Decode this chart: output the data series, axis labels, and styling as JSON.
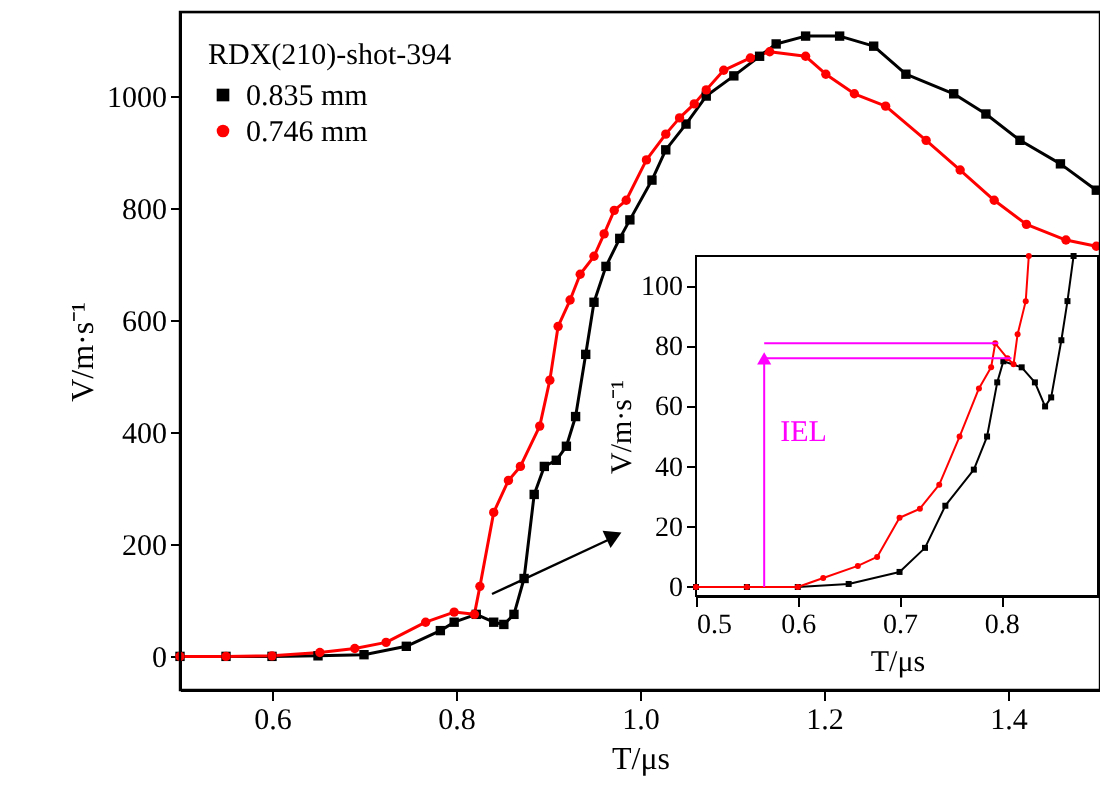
{
  "chart_data": [
    {
      "type": "line",
      "xlabel": "T/μs",
      "ylabel": "V/m·s⁻¹",
      "legend_title": "RDX(210)-shot-394",
      "legend": "top left",
      "grid": false,
      "line_style": "solid",
      "xlim": [
        0.5,
        1.5
      ],
      "xticks": [
        0.6,
        0.8,
        {
          "value": 1,
          "label": "1.0"
        },
        1.2,
        1.4
      ],
      "ylim": [
        -60,
        1150
      ],
      "yticks": [
        0,
        200,
        400,
        600,
        800,
        1000
      ],
      "series": [
        {
          "name": "0.835 mm",
          "color": "#000000",
          "marker": "square",
          "x": [
            0.5,
            0.55,
            0.6,
            0.65,
            0.7,
            0.746,
            0.783,
            0.798,
            0.822,
            0.841,
            0.852,
            0.863,
            0.874,
            0.885,
            0.896,
            0.909,
            0.92,
            0.93,
            0.941,
            0.95,
            0.963,
            0.978,
            0.989,
            1.013,
            1.028,
            1.05,
            1.072,
            1.102,
            1.13,
            1.148,
            1.18,
            1.217,
            1.254,
            1.289,
            1.341,
            1.376,
            1.413,
            1.457,
            1.496
          ],
          "values": [
            0,
            0,
            0,
            1,
            3,
            18,
            46,
            61,
            75,
            61,
            57,
            75,
            139,
            289,
            339,
            350,
            375,
            428,
            539,
            632,
            696,
            746,
            779,
            850,
            904,
            950,
            1000,
            1036,
            1071,
            1093,
            1107,
            1107,
            1089,
            1039,
            1004,
            968,
            921,
            879,
            832
          ]
        },
        {
          "name": "0.746 mm",
          "color": "#ff0000",
          "marker": "circle",
          "x": [
            0.5,
            0.55,
            0.6,
            0.652,
            0.69,
            0.724,
            0.767,
            0.798,
            0.82,
            0.826,
            0.841,
            0.857,
            0.87,
            0.891,
            0.902,
            0.911,
            0.924,
            0.935,
            0.95,
            0.961,
            0.972,
            0.985,
            1.007,
            1.028,
            1.043,
            1.059,
            1.072,
            1.091,
            1.12,
            1.141,
            1.18,
            1.202,
            1.233,
            1.267,
            1.311,
            1.348,
            1.385,
            1.42,
            1.463,
            1.496
          ],
          "values": [
            0,
            0,
            1,
            7,
            14,
            25,
            61,
            79,
            75,
            125,
            257,
            314,
            339,
            411,
            493,
            589,
            636,
            682,
            714,
            754,
            796,
            814,
            886,
            932,
            961,
            986,
            1011,
            1046,
            1068,
            1079,
            1071,
            1039,
            1004,
            982,
            921,
            868,
            814,
            771,
            743,
            732
          ]
        }
      ]
    },
    {
      "type": "line",
      "xlabel": "T/μs",
      "ylabel": "V/m·s⁻¹",
      "grid": false,
      "line_style": "solid",
      "xlim": [
        0.5,
        0.895
      ],
      "xticks": [
        0.5,
        0.6,
        0.7,
        0.8
      ],
      "ylim": [
        -3,
        110
      ],
      "yticks": [
        0,
        20,
        40,
        60,
        80,
        100
      ],
      "annotations": [
        {
          "text": "IEL",
          "x": 0.567,
          "y": 52
        }
      ],
      "series": [
        {
          "color": "#000000",
          "marker": "square",
          "x": [
            0.5,
            0.55,
            0.6,
            0.65,
            0.7,
            0.725,
            0.745,
            0.773,
            0.786,
            0.796,
            0.802,
            0.82,
            0.833,
            0.843,
            0.849,
            0.859,
            0.865,
            0.871
          ],
          "values": [
            0,
            0,
            0,
            1,
            5,
            13,
            27,
            39,
            50,
            68,
            75,
            73,
            68,
            60,
            63,
            82,
            95,
            110
          ]
        },
        {
          "color": "#ff0000",
          "marker": "circle",
          "x": [
            0.5,
            0.55,
            0.6,
            0.625,
            0.659,
            0.678,
            0.7,
            0.72,
            0.739,
            0.759,
            0.778,
            0.79,
            0.794,
            0.806,
            0.812,
            0.816,
            0.824,
            0.827
          ],
          "values": [
            0,
            0,
            0,
            3,
            7,
            10,
            23,
            26,
            34,
            50,
            66,
            73,
            81,
            76,
            74,
            84,
            95,
            110
          ]
        },
        {
          "color": "#ff00ff",
          "marker": "none",
          "x": [
            0.567,
            0.567,
            0.81
          ],
          "values": [
            0,
            76,
            76
          ]
        },
        {
          "color": "#ff00ff",
          "marker": "none",
          "x": [
            0.567,
            0.797
          ],
          "values": [
            81,
            81
          ]
        }
      ]
    }
  ]
}
